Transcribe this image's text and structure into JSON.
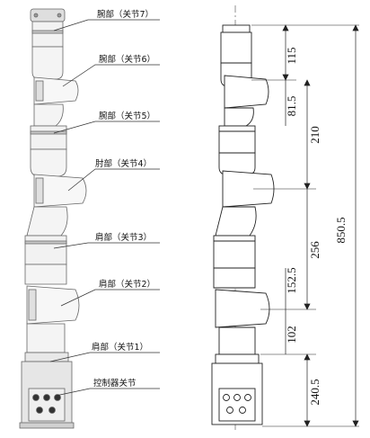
{
  "labels": {
    "j7": "腕部（关节7）",
    "j6": "腕部（关节6）",
    "j5": "腕部（关节5）",
    "j4": "肘部（关节4）",
    "j3": "肩部（关节3）",
    "j2": "肩部（关节2）",
    "j1": "肩部（关节1）",
    "base": "控制器关节"
  },
  "dimensions": {
    "d1": "115",
    "d2": "81.5",
    "d3": "210",
    "d4": "256",
    "d5": "152.5",
    "d6": "102",
    "d7": "240.5",
    "total": "850.5"
  },
  "colors": {
    "robot_fill": "#f4f4f4",
    "joint_band": "#c9c9c9",
    "base_fill": "#e6e6e6",
    "port_dark": "#333333"
  }
}
